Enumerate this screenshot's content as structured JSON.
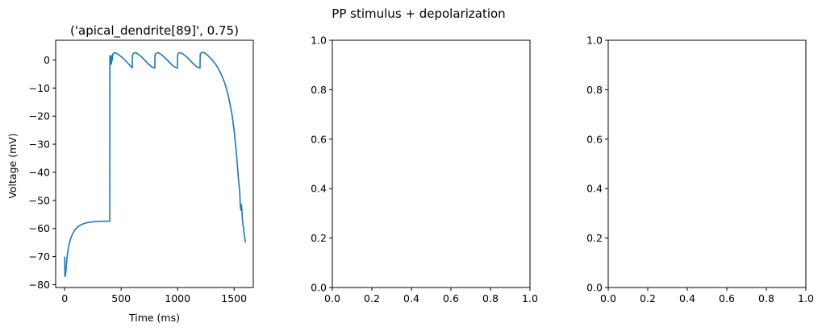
{
  "figure": {
    "suptitle": "PP stimulus + depolarization"
  },
  "chart_data": [
    {
      "type": "line",
      "title": "('apical_dendrite[89]', 0.75)",
      "xlabel": "Time (ms)",
      "ylabel": "Voltage (mV)",
      "xlim": [
        -80,
        1670
      ],
      "ylim": [
        -81,
        7
      ],
      "xticks": [
        0,
        500,
        1000,
        1500
      ],
      "xtick_labels": [
        "0",
        "500",
        "1000",
        "1500"
      ],
      "yticks": [
        0,
        -10,
        -20,
        -30,
        -40,
        -50,
        -60,
        -70,
        -80
      ],
      "ytick_labels": [
        "0",
        "−10",
        "−20",
        "−30",
        "−40",
        "−50",
        "−60",
        "−70",
        "−80"
      ],
      "grid": false,
      "series": [
        {
          "color": "#1f77b4",
          "x": [
            0,
            2,
            5,
            10,
            15,
            20,
            30,
            40,
            50,
            60,
            80,
            100,
            130,
            160,
            200,
            250,
            300,
            350,
            399,
            400,
            401,
            405,
            410,
            412,
            415,
            418,
            422,
            425,
            430,
            440,
            460,
            480,
            500,
            520,
            540,
            560,
            580,
            598,
            600,
            610,
            625,
            645,
            665,
            685,
            705,
            725,
            745,
            765,
            785,
            798,
            800,
            810,
            825,
            845,
            865,
            885,
            905,
            925,
            945,
            965,
            985,
            998,
            1000,
            1010,
            1025,
            1045,
            1065,
            1085,
            1105,
            1125,
            1145,
            1165,
            1185,
            1198,
            1200,
            1210,
            1225,
            1245,
            1270,
            1300,
            1330,
            1360,
            1390,
            1420,
            1450,
            1480,
            1500,
            1520,
            1540,
            1550,
            1555,
            1560,
            1565,
            1568,
            1570,
            1572,
            1575,
            1580,
            1590,
            1600
          ],
          "y": [
            -70,
            -77,
            -77,
            -75.5,
            -73,
            -70.5,
            -67.5,
            -65.5,
            -64,
            -62.8,
            -61.2,
            -60,
            -59,
            -58.4,
            -57.9,
            -57.6,
            -57.5,
            -57.4,
            -57.4,
            1.5,
            -2,
            1.5,
            -1,
            0.5,
            -1.5,
            1.5,
            0,
            1.8,
            2.3,
            2.6,
            2.3,
            1.8,
            1.2,
            0.5,
            -0.3,
            -1.2,
            -2,
            -2.8,
            1.8,
            2.4,
            2.6,
            2.2,
            1.6,
            0.9,
            0.1,
            -0.8,
            -1.6,
            -2.3,
            -2.7,
            -2.9,
            1.8,
            2.4,
            2.6,
            2.2,
            1.6,
            0.9,
            0.1,
            -0.8,
            -1.6,
            -2.3,
            -2.7,
            -2.9,
            1.8,
            2.4,
            2.6,
            2.2,
            1.6,
            0.9,
            0.1,
            -0.8,
            -1.6,
            -2.3,
            -2.7,
            -2.9,
            2.0,
            2.6,
            2.7,
            2.3,
            1.5,
            0.3,
            -1.2,
            -3,
            -5.5,
            -8.5,
            -13,
            -19,
            -25,
            -33,
            -43,
            -47,
            -52,
            -53.5,
            -51.5,
            -53,
            -54,
            -56,
            -57,
            -59,
            -62,
            -65
          ]
        }
      ]
    },
    {
      "type": "line",
      "title": "",
      "xlim": [
        0,
        1
      ],
      "ylim": [
        0,
        1
      ],
      "xticks": [
        0,
        0.2,
        0.4,
        0.6,
        0.8,
        1.0
      ],
      "xtick_labels": [
        "0.0",
        "0.2",
        "0.4",
        "0.6",
        "0.8",
        "1.0"
      ],
      "yticks": [
        0,
        0.2,
        0.4,
        0.6,
        0.8,
        1.0
      ],
      "ytick_labels": [
        "0.0",
        "0.2",
        "0.4",
        "0.6",
        "0.8",
        "1.0"
      ],
      "grid": false,
      "series": []
    },
    {
      "type": "line",
      "title": "",
      "xlim": [
        0,
        1
      ],
      "ylim": [
        0,
        1
      ],
      "xticks": [
        0,
        0.2,
        0.4,
        0.6,
        0.8,
        1.0
      ],
      "xtick_labels": [
        "0.0",
        "0.2",
        "0.4",
        "0.6",
        "0.8",
        "1.0"
      ],
      "yticks": [
        0,
        0.2,
        0.4,
        0.6,
        0.8,
        1.0
      ],
      "ytick_labels": [
        "0.0",
        "0.2",
        "0.4",
        "0.6",
        "0.8",
        "1.0"
      ],
      "grid": false,
      "series": []
    }
  ]
}
